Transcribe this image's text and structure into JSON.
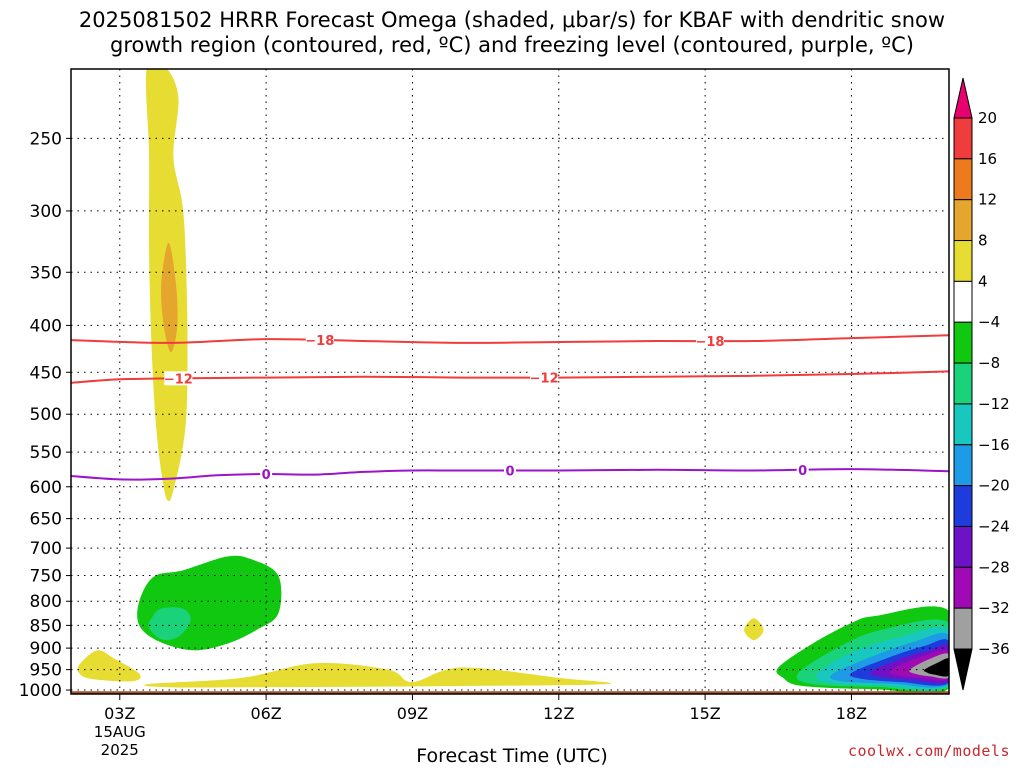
{
  "header": {
    "title_line1": "2025081502 HRRR Forecast Omega (shaded, μbar/s) for KBAF with dendritic snow",
    "title_line2": "growth region (contoured, red, ºC) and freezing level (contoured, purple, ºC)"
  },
  "footer": {
    "credit": "coolwx.com/models"
  },
  "chart_data": {
    "type": "contour",
    "title": "2025081502 HRRR Forecast Omega (shaded, μbar/s) for KBAF with dendritic snow growth region (contoured, red, ºC) and freezing level (contoured, purple, ºC)",
    "xlabel": "Forecast Time (UTC)",
    "ylabel": "",
    "x_range_hours_utc": [
      2,
      20
    ],
    "y_range_hpa": [
      1010,
      210
    ],
    "y_scale": "log",
    "grid": true,
    "x_ticks": [
      {
        "hour": 3,
        "label": "03Z",
        "sub1": "15AUG",
        "sub2": "2025"
      },
      {
        "hour": 6,
        "label": "06Z"
      },
      {
        "hour": 9,
        "label": "09Z"
      },
      {
        "hour": 12,
        "label": "12Z"
      },
      {
        "hour": 15,
        "label": "15Z"
      },
      {
        "hour": 18,
        "label": "18Z"
      }
    ],
    "y_ticks": [
      250,
      300,
      350,
      400,
      450,
      500,
      550,
      600,
      650,
      700,
      750,
      800,
      850,
      900,
      950,
      1000
    ],
    "colorbar": {
      "labels": [
        "20",
        "16",
        "12",
        "8",
        "4",
        "−4",
        "−8",
        "−12",
        "−16",
        "−20",
        "−24",
        "−28",
        "−32",
        "−36"
      ],
      "colors": [
        "#e8006e",
        "#f03c3c",
        "#ee7a1e",
        "#e4a62c",
        "#e6dc32",
        "#ffffff",
        "#10c810",
        "#19d27a",
        "#18c8be",
        "#1e9be6",
        "#1e3cdc",
        "#6e12c8",
        "#a00ab4",
        "#a0a0a0",
        "#000000"
      ]
    },
    "contours": [
      {
        "name": "dendritic_snow_-18C",
        "color": "#f03c3c",
        "label": "−18",
        "points": [
          [
            2,
            415
          ],
          [
            4,
            418
          ],
          [
            6,
            414
          ],
          [
            8,
            416
          ],
          [
            10,
            418
          ],
          [
            12,
            417
          ],
          [
            14,
            416
          ],
          [
            16,
            416
          ],
          [
            18,
            413
          ],
          [
            20,
            410
          ]
        ],
        "label_hours": [
          7.1,
          15.1
        ]
      },
      {
        "name": "dendritic_snow_-12C",
        "color": "#f03c3c",
        "label": "−12",
        "points": [
          [
            2,
            462
          ],
          [
            3,
            458
          ],
          [
            4,
            457
          ],
          [
            6,
            456
          ],
          [
            8,
            455
          ],
          [
            10,
            456
          ],
          [
            12,
            456
          ],
          [
            14,
            455
          ],
          [
            16,
            454
          ],
          [
            18,
            452
          ],
          [
            20,
            449
          ]
        ],
        "label_hours": [
          4.2,
          11.7
        ]
      },
      {
        "name": "freezing_level_0C",
        "color": "#9b14c8",
        "label": "0",
        "points": [
          [
            2,
            584
          ],
          [
            3,
            589
          ],
          [
            4,
            588
          ],
          [
            5,
            583
          ],
          [
            6,
            581
          ],
          [
            7,
            582
          ],
          [
            8,
            578
          ],
          [
            9,
            576
          ],
          [
            10,
            576
          ],
          [
            12,
            576
          ],
          [
            14,
            575
          ],
          [
            16,
            576
          ],
          [
            18,
            574
          ],
          [
            20,
            577
          ]
        ],
        "label_hours": [
          6,
          11,
          17
        ]
      }
    ],
    "omega_regions": [
      {
        "value_band": "4..8",
        "color": "#e6dc32",
        "points": [
          [
            3.55,
            210
          ],
          [
            3.9,
            208
          ],
          [
            4.2,
            225
          ],
          [
            4.1,
            262
          ],
          [
            4.3,
            300
          ],
          [
            4.38,
            380
          ],
          [
            4.38,
            480
          ],
          [
            4.3,
            540
          ],
          [
            4.1,
            605
          ],
          [
            4.0,
            622
          ],
          [
            3.9,
            600
          ],
          [
            3.75,
            520
          ],
          [
            3.65,
            420
          ],
          [
            3.6,
            330
          ],
          [
            3.6,
            260
          ]
        ]
      },
      {
        "value_band": "8..12",
        "color": "#e4a62c",
        "points": [
          [
            4.0,
            325
          ],
          [
            4.15,
            360
          ],
          [
            4.18,
            400
          ],
          [
            4.05,
            428
          ],
          [
            3.9,
            400
          ],
          [
            3.85,
            360
          ]
        ]
      },
      {
        "value_band": "4..8",
        "color": "#e6dc32",
        "points": [
          [
            2.2,
            934
          ],
          [
            2.55,
            905
          ],
          [
            2.9,
            925
          ],
          [
            3.4,
            960
          ],
          [
            3.25,
            978
          ],
          [
            2.4,
            972
          ],
          [
            2.15,
            955
          ]
        ]
      },
      {
        "value_band": "4..8",
        "color": "#e6dc32",
        "points": [
          [
            3.6,
            985
          ],
          [
            5.5,
            970
          ],
          [
            7,
            935
          ],
          [
            8.5,
            950
          ],
          [
            9,
            980
          ],
          [
            10,
            945
          ],
          [
            12,
            970
          ],
          [
            13,
            985
          ],
          [
            10,
            990
          ],
          [
            6,
            993
          ],
          [
            4,
            993
          ]
        ]
      },
      {
        "value_band": "4..8",
        "color": "#e6dc32",
        "points": [
          [
            15.8,
            860
          ],
          [
            16,
            835
          ],
          [
            16.2,
            860
          ],
          [
            16,
            882
          ]
        ]
      },
      {
        "value_band": "-4..-8",
        "color": "#10c810",
        "points": [
          [
            3.4,
            800
          ],
          [
            3.7,
            752
          ],
          [
            4.3,
            740
          ],
          [
            5.2,
            715
          ],
          [
            5.7,
            720
          ],
          [
            6.25,
            750
          ],
          [
            6.25,
            825
          ],
          [
            5.8,
            860
          ],
          [
            5.2,
            890
          ],
          [
            4.5,
            905
          ],
          [
            3.8,
            885
          ],
          [
            3.4,
            850
          ]
        ]
      },
      {
        "value_band": "-8..-12",
        "color": "#19d27a",
        "points": [
          [
            3.65,
            835
          ],
          [
            3.85,
            815
          ],
          [
            4.3,
            815
          ],
          [
            4.45,
            840
          ],
          [
            4.2,
            875
          ],
          [
            3.85,
            880
          ],
          [
            3.6,
            855
          ]
        ]
      },
      {
        "value_band": "-4..-8",
        "color": "#10c810",
        "points": [
          [
            16.5,
            945
          ],
          [
            17.2,
            890
          ],
          [
            18,
            845
          ],
          [
            18.5,
            830
          ],
          [
            20,
            820
          ],
          [
            20,
            995
          ],
          [
            18.5,
            998
          ],
          [
            17,
            990
          ],
          [
            16.6,
            970
          ]
        ]
      },
      {
        "value_band": "-8..-12",
        "color": "#19d27a",
        "points": [
          [
            16.9,
            960
          ],
          [
            17.7,
            900
          ],
          [
            18.6,
            860
          ],
          [
            20,
            845
          ],
          [
            20,
            992
          ],
          [
            18.5,
            992
          ],
          [
            17.2,
            985
          ]
        ]
      },
      {
        "value_band": "-12..-16",
        "color": "#18c8be",
        "points": [
          [
            17.3,
            960
          ],
          [
            18,
            910
          ],
          [
            19,
            875
          ],
          [
            20,
            860
          ],
          [
            20,
            988
          ],
          [
            18.5,
            988
          ],
          [
            17.5,
            982
          ]
        ]
      },
      {
        "value_band": "-16..-20",
        "color": "#1e9be6",
        "points": [
          [
            17.6,
            962
          ],
          [
            18.4,
            920
          ],
          [
            19.3,
            885
          ],
          [
            20,
            872
          ],
          [
            20,
            985
          ],
          [
            18.8,
            984
          ],
          [
            17.8,
            978
          ]
        ]
      },
      {
        "value_band": "-20..-24",
        "color": "#1e3cdc",
        "points": [
          [
            18,
            958
          ],
          [
            18.8,
            920
          ],
          [
            19.5,
            895
          ],
          [
            20,
            885
          ],
          [
            20,
            982
          ],
          [
            19,
            980
          ],
          [
            18.2,
            972
          ]
        ]
      },
      {
        "value_band": "-24..-28",
        "color": "#6e12c8",
        "points": [
          [
            18.4,
            955
          ],
          [
            19,
            925
          ],
          [
            19.6,
            905
          ],
          [
            20,
            896
          ],
          [
            20,
            978
          ],
          [
            19.2,
            975
          ],
          [
            18.6,
            968
          ]
        ]
      },
      {
        "value_band": "-28..-32",
        "color": "#a00ab4",
        "points": [
          [
            18.8,
            952
          ],
          [
            19.3,
            925
          ],
          [
            20,
            906
          ],
          [
            20,
            972
          ],
          [
            19.4,
            970
          ],
          [
            18.9,
            963
          ]
        ]
      },
      {
        "value_band": "-32..-36",
        "color": "#a0a0a0",
        "points": [
          [
            19.2,
            950
          ],
          [
            19.6,
            925
          ],
          [
            20,
            914
          ],
          [
            20,
            968
          ],
          [
            19.6,
            966
          ],
          [
            19.3,
            960
          ]
        ]
      },
      {
        "value_band": "<-36",
        "color": "#000000",
        "points": [
          [
            19.5,
            950
          ],
          [
            19.8,
            932
          ],
          [
            20,
            925
          ],
          [
            20,
            964
          ],
          [
            19.7,
            962
          ],
          [
            19.55,
            957
          ]
        ]
      }
    ],
    "ground_color": "#a0522d"
  }
}
